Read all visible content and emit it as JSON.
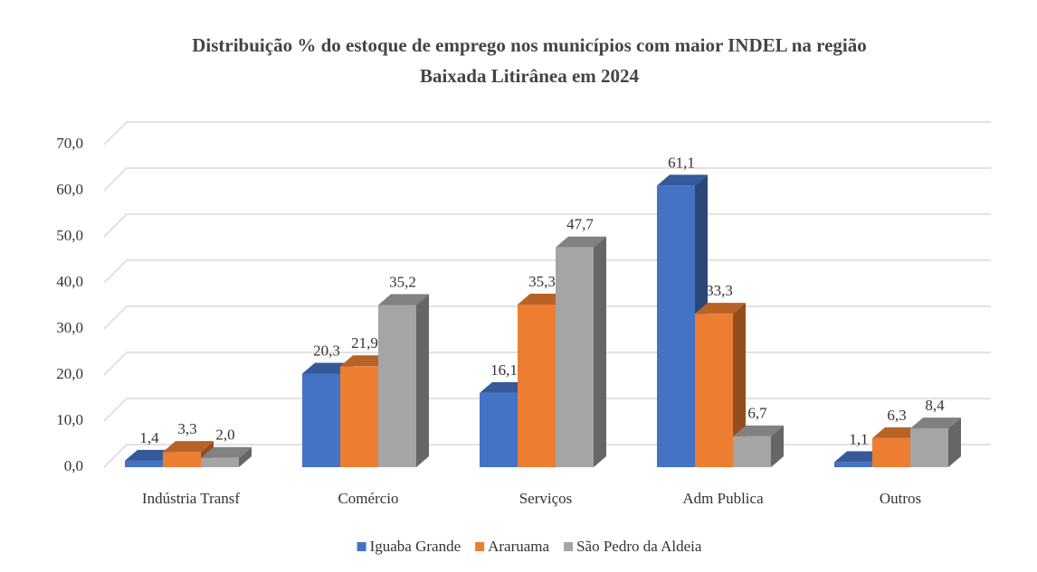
{
  "chart_data": {
    "type": "bar3d",
    "title": "Distribuição % do estoque de emprego nos municípios com maior INDEL na região",
    "subtitle": "Baixada Litirânea em 2024",
    "categories": [
      "Indústria Transf",
      "Comércio",
      "Serviços",
      "Adm Publica",
      "Outros"
    ],
    "series": [
      {
        "name": "Iguaba Grande",
        "color": "#4472c4",
        "values": [
          1.4,
          20.3,
          16.1,
          61.1,
          1.1
        ],
        "value_labels": [
          "1,4",
          "20,3",
          "16,1",
          "61,1",
          "1,1"
        ]
      },
      {
        "name": "Araruama",
        "color": "#ed7d31",
        "values": [
          3.3,
          21.9,
          35.3,
          33.3,
          6.3
        ],
        "value_labels": [
          "3,3",
          "21,9",
          "35,3",
          "33,3",
          "6,3"
        ]
      },
      {
        "name": "São Pedro da Aldeia",
        "color": "#a5a5a5",
        "values": [
          2.0,
          35.2,
          47.7,
          6.7,
          8.4
        ],
        "value_labels": [
          "2,0",
          "35,2",
          "47,7",
          "6,7",
          "8,4"
        ]
      }
    ],
    "ylim": [
      0,
      70
    ],
    "yticks": [
      {
        "value": 0,
        "label": "0,0"
      },
      {
        "value": 10,
        "label": "10,0"
      },
      {
        "value": 20,
        "label": "20,0"
      },
      {
        "value": 30,
        "label": "30,0"
      },
      {
        "value": 40,
        "label": "40,0"
      },
      {
        "value": 50,
        "label": "50,0"
      },
      {
        "value": 60,
        "label": "60,0"
      },
      {
        "value": 70,
        "label": "70,0"
      }
    ],
    "grid": true,
    "legend": "bottom"
  }
}
